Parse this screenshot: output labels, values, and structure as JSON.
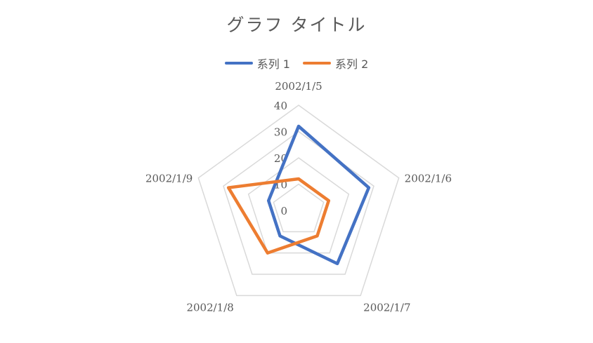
{
  "chart_data": {
    "type": "radar",
    "title": "グラフ タイトル",
    "categories": [
      "2002/1/5",
      "2002/1/6",
      "2002/1/7",
      "2002/1/8",
      "2002/1/9"
    ],
    "radial_ticks": [
      "0",
      "10",
      "20",
      "30",
      "40"
    ],
    "rmin": 0,
    "rmax": 40,
    "grid": true,
    "legend_position": "top",
    "series": [
      {
        "name": "系列 1",
        "color": "#4472C4",
        "values": [
          32,
          28,
          25,
          12,
          12
        ]
      },
      {
        "name": "系列 2",
        "color": "#ED7D31",
        "values": [
          12,
          12,
          12,
          20,
          28
        ]
      }
    ]
  }
}
